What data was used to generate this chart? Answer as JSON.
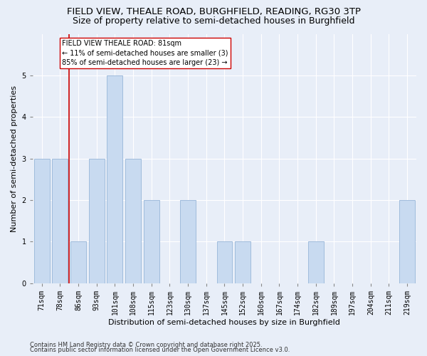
{
  "title_line1": "FIELD VIEW, THEALE ROAD, BURGHFIELD, READING, RG30 3TP",
  "title_line2": "Size of property relative to semi-detached houses in Burghfield",
  "xlabel": "Distribution of semi-detached houses by size in Burghfield",
  "ylabel": "Number of semi-detached properties",
  "categories": [
    "71sqm",
    "78sqm",
    "86sqm",
    "93sqm",
    "101sqm",
    "108sqm",
    "115sqm",
    "123sqm",
    "130sqm",
    "137sqm",
    "145sqm",
    "152sqm",
    "160sqm",
    "167sqm",
    "174sqm",
    "182sqm",
    "189sqm",
    "197sqm",
    "204sqm",
    "211sqm",
    "219sqm"
  ],
  "values": [
    3,
    3,
    1,
    3,
    5,
    3,
    2,
    0,
    2,
    0,
    1,
    1,
    0,
    0,
    0,
    1,
    0,
    0,
    0,
    0,
    2
  ],
  "bar_color": "#c8daf0",
  "bar_edge_color": "#a0bcdc",
  "vline_x_index": 1.5,
  "vline_color": "#cc0000",
  "annotation_text": "FIELD VIEW THEALE ROAD: 81sqm\n← 11% of semi-detached houses are smaller (3)\n85% of semi-detached houses are larger (23) →",
  "annotation_box_color": "white",
  "annotation_box_edge_color": "#cc0000",
  "ylim": [
    0,
    6
  ],
  "yticks": [
    0,
    1,
    2,
    3,
    4,
    5
  ],
  "footer_line1": "Contains HM Land Registry data © Crown copyright and database right 2025.",
  "footer_line2": "Contains public sector information licensed under the Open Government Licence v3.0.",
  "background_color": "#e8eef8",
  "plot_background_color": "#e8eef8",
  "grid_color": "#ffffff",
  "title_fontsize": 9.5,
  "subtitle_fontsize": 9,
  "tick_fontsize": 7,
  "label_fontsize": 8,
  "annotation_fontsize": 7,
  "footer_fontsize": 6
}
